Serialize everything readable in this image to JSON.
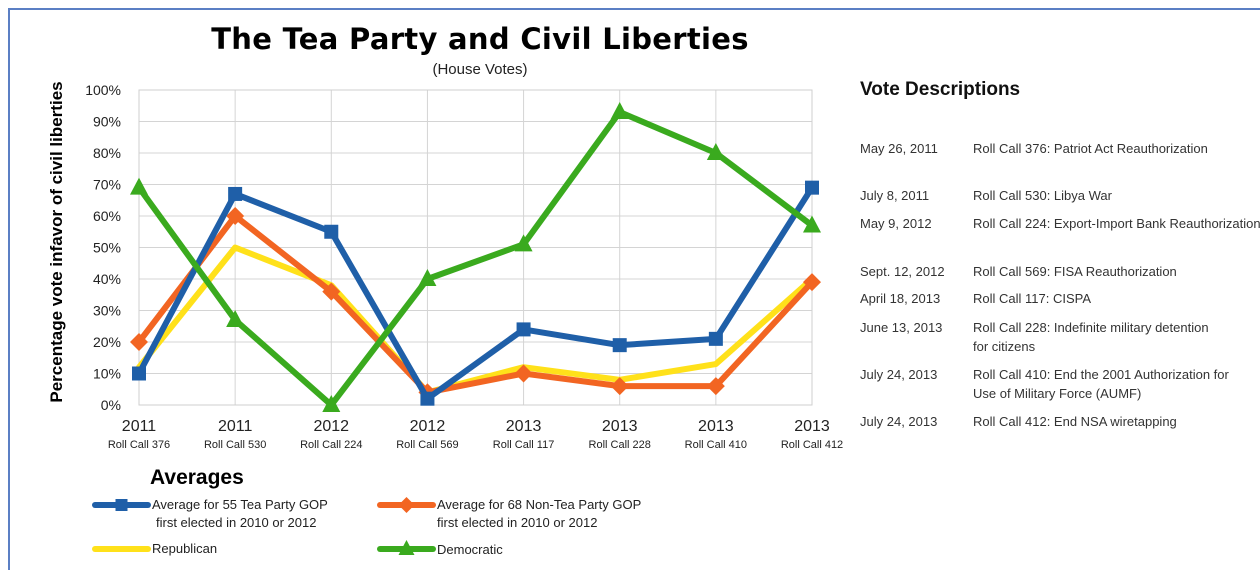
{
  "chart_data": {
    "type": "line",
    "title": "The Tea Party and Civil Liberties",
    "subtitle": "(House Votes)",
    "ylabel": "Percentage vote infavor of civil liberties",
    "ylim": [
      0,
      100
    ],
    "yticks": [
      "0%",
      "10%",
      "20%",
      "30%",
      "40%",
      "50%",
      "60%",
      "70%",
      "80%",
      "90%",
      "100%"
    ],
    "grid": true,
    "x_years": [
      "2011",
      "2011",
      "2012",
      "2012",
      "2013",
      "2013",
      "2013",
      "2013"
    ],
    "categories": [
      "Roll Call 376",
      "Roll Call 530",
      "Roll Call 224",
      "Roll Call 569",
      "Roll Call 117",
      "Roll Call 228",
      "Roll Call 410",
      "Roll Call 412"
    ],
    "legend_title": "Averages",
    "series": [
      {
        "name": "Average for 55 Tea Party GOP first elected in 2010 or 2012",
        "line1": "Average for 55 Tea Party GOP",
        "line2": "first elected in 2010 or 2012",
        "color": "#1f5fa8",
        "marker": "square",
        "values": [
          10,
          67,
          55,
          2,
          24,
          19,
          21,
          69
        ]
      },
      {
        "name": "Average for 68 Non-Tea Party GOP first elected in 2010 or 2012",
        "line1": "Average for 68 Non-Tea Party GOP",
        "line2": "first elected in 2010 or 2012",
        "color": "#f26522",
        "marker": "diamond",
        "values": [
          20,
          60,
          36,
          4,
          10,
          6,
          6,
          39
        ]
      },
      {
        "name": "Republican",
        "line1": "Republican",
        "line2": "",
        "color": "#ffe11a",
        "marker": "none",
        "values": [
          12,
          50,
          38,
          4,
          12,
          8,
          13,
          40
        ]
      },
      {
        "name": "Democratic",
        "line1": "Democratic",
        "line2": "",
        "color": "#3aaa1e",
        "marker": "triangle",
        "values": [
          69,
          27,
          0,
          40,
          51,
          93,
          80,
          57
        ]
      }
    ]
  },
  "vote_descriptions": {
    "heading": "Vote Descriptions",
    "items": [
      {
        "date": "May 26, 2011",
        "text": "Roll Call 376: Patriot Act Reauthorization"
      },
      {
        "date": "July 8, 2011",
        "text": "Roll Call 530: Libya War"
      },
      {
        "date": "May 9, 2012",
        "text": "Roll Call 224: Export-Import Bank Reauthorization"
      },
      {
        "date": "Sept. 12, 2012",
        "text": "Roll Call 569: FISA Reauthorization"
      },
      {
        "date": "April 18, 2013",
        "text": "Roll Call 117: CISPA"
      },
      {
        "date": "June 13, 2013",
        "text": "Roll Call 228: Indefinite military detention for citizens"
      },
      {
        "date": "July 24, 2013",
        "text": "Roll Call 410: End the 2001 Authorization for Use of Military Force (AUMF)"
      },
      {
        "date": "July 24, 2013",
        "text": "Roll Call 412: End NSA wiretapping"
      }
    ]
  }
}
